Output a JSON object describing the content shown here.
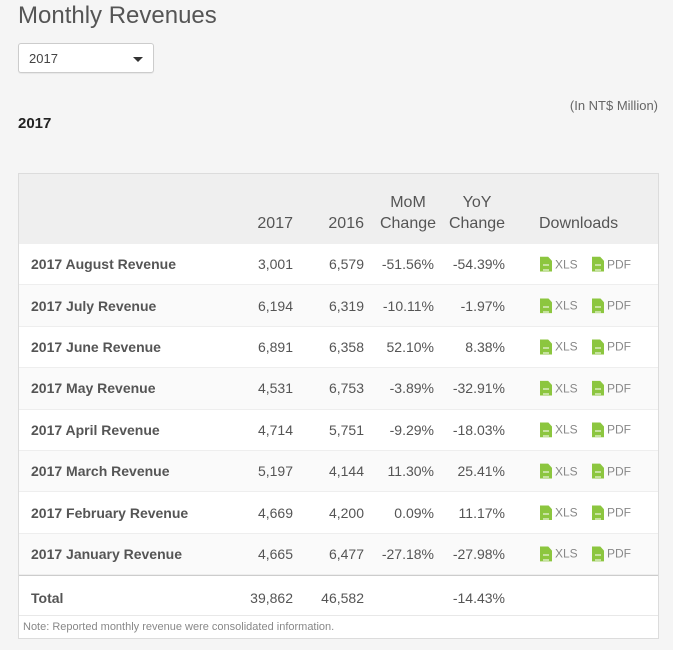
{
  "page": {
    "title": "Monthly Revenues"
  },
  "year_select": {
    "value": "2017"
  },
  "unit_note": "(In NT$ Million)",
  "year_heading": "2017",
  "table": {
    "headers": {
      "col_2017": "2017",
      "col_2016": "2016",
      "mom_line1": "MoM",
      "mom_line2": "Change",
      "yoy_line1": "YoY",
      "yoy_line2": "Change",
      "downloads": "Downloads"
    },
    "rows": [
      {
        "label": "2017 August Revenue",
        "v2017": "3,001",
        "v2016": "6,579",
        "mom": "-51.56%",
        "yoy": "-54.39%"
      },
      {
        "label": "2017 July Revenue",
        "v2017": "6,194",
        "v2016": "6,319",
        "mom": "-10.11%",
        "yoy": "-1.97%"
      },
      {
        "label": "2017 June Revenue",
        "v2017": "6,891",
        "v2016": "6,358",
        "mom": "52.10%",
        "yoy": "8.38%"
      },
      {
        "label": "2017 May Revenue",
        "v2017": "4,531",
        "v2016": "6,753",
        "mom": "-3.89%",
        "yoy": "-32.91%"
      },
      {
        "label": "2017 April Revenue",
        "v2017": "4,714",
        "v2016": "5,751",
        "mom": "-9.29%",
        "yoy": "-18.03%"
      },
      {
        "label": "2017 March Revenue",
        "v2017": "5,197",
        "v2016": "4,144",
        "mom": "11.30%",
        "yoy": "25.41%"
      },
      {
        "label": "2017 February Revenue",
        "v2017": "4,669",
        "v2016": "4,200",
        "mom": "0.09%",
        "yoy": "11.17%"
      },
      {
        "label": "2017 January Revenue",
        "v2017": "4,665",
        "v2016": "6,477",
        "mom": "-27.18%",
        "yoy": "-27.98%"
      }
    ],
    "download_labels": {
      "xls": "XLS",
      "pdf": "PDF"
    },
    "total": {
      "label": "Total",
      "v2017": "39,862",
      "v2016": "46,582",
      "yoy": "-14.43%"
    },
    "note": "Note: Reported monthly revenue were consolidated information."
  },
  "colors": {
    "file_icon": "#8cc63f"
  },
  "icons": {
    "download_file": "file-icon",
    "dropdown": "chevron-down-icon"
  }
}
